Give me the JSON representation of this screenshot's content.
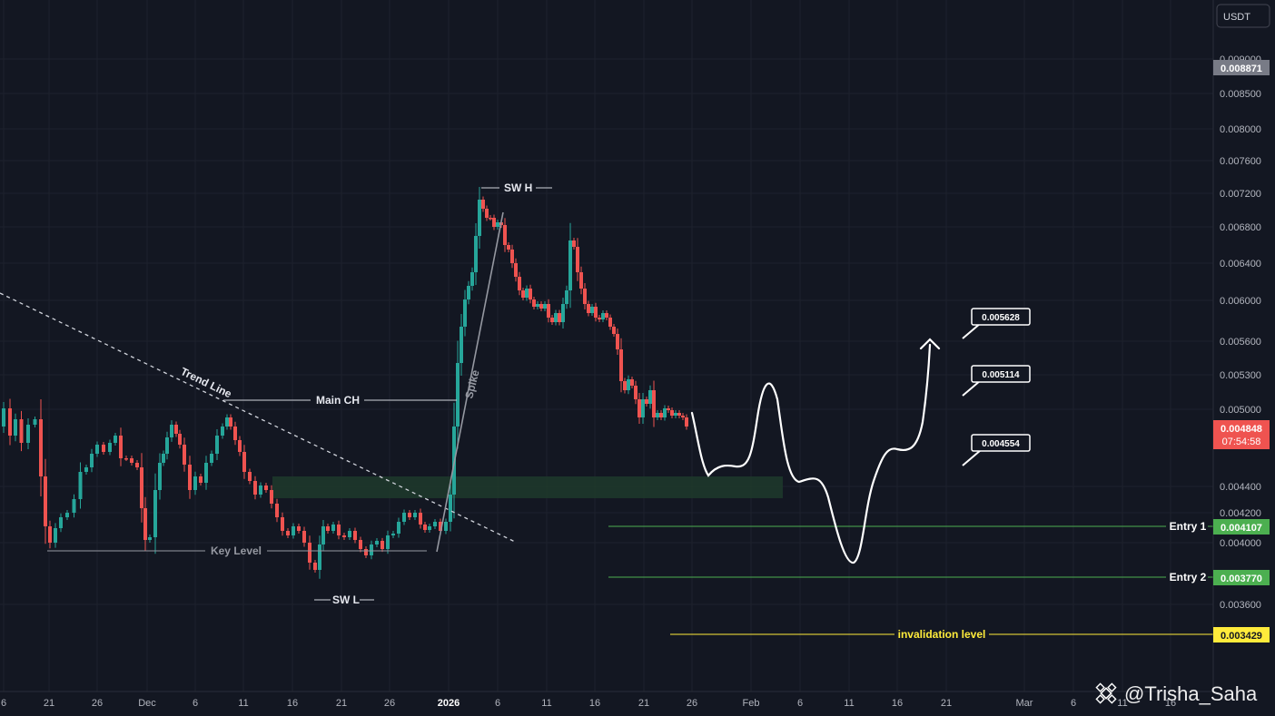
{
  "currency": {
    "label": "USDT"
  },
  "watermark": {
    "handle": "@Trisha_Saha"
  },
  "price_scale": {
    "ticks": [
      "0.009000",
      "0.008500",
      "0.008000",
      "0.007600",
      "0.007200",
      "0.006800",
      "0.006400",
      "0.006000",
      "0.005600",
      "0.005300",
      "0.005000",
      "0.004400",
      "0.004200",
      "0.004000",
      "0.003600"
    ],
    "current_price": "0.008871",
    "last_price": "0.004848",
    "countdown": "07:54:58",
    "colors": {
      "bull": "#26a69a",
      "bear": "#ef5350",
      "gray_tag": "#787b86",
      "entry": "#4caf50",
      "invalid": "#ffeb3b"
    }
  },
  "time_scale": {
    "ticks": [
      "6",
      "21",
      "26",
      "Dec",
      "6",
      "11",
      "16",
      "21",
      "26",
      "2026",
      "6",
      "11",
      "16",
      "21",
      "26",
      "Feb",
      "6",
      "11",
      "16",
      "21",
      "Mar",
      "6",
      "11",
      "16"
    ]
  },
  "annotations": {
    "trend_line": "Trend Line",
    "main_ch": "Main CH",
    "key_level": "Key Level",
    "spike": "Spike",
    "sw_h": "SW H",
    "sw_l": "SW L"
  },
  "levels": {
    "entry1": {
      "label": "Entry 1",
      "price": "0.004107"
    },
    "entry2": {
      "label": "Entry 2",
      "price": "0.003770"
    },
    "invalidation": {
      "label": "invalidation level",
      "price": "0.003429"
    }
  },
  "targets": [
    "0.005628",
    "0.005114",
    "0.004554"
  ],
  "chart_data": {
    "type": "candlestick",
    "y_scale": "log-like (TradingView price axis)",
    "grid": true,
    "candles_ohlc_approx": [
      {
        "date": "Nov 21",
        "o": 0.0043,
        "h": 0.00445,
        "l": 0.00398,
        "c": 0.00405
      },
      {
        "date": "Nov 26",
        "o": 0.0044,
        "h": 0.00475,
        "l": 0.00435,
        "c": 0.00465
      },
      {
        "date": "Dec 1",
        "o": 0.00462,
        "h": 0.0047,
        "l": 0.004,
        "c": 0.00405
      },
      {
        "date": "Dec 6",
        "o": 0.00445,
        "h": 0.0048,
        "l": 0.00435,
        "c": 0.0047
      },
      {
        "date": "Dec 9",
        "o": 0.0047,
        "h": 0.0051,
        "l": 0.0044,
        "c": 0.00465
      },
      {
        "date": "Dec 16",
        "o": 0.0042,
        "h": 0.00425,
        "l": 0.00385,
        "c": 0.00392
      },
      {
        "date": "Dec 19",
        "o": 0.0039,
        "h": 0.00395,
        "l": 0.0036,
        "c": 0.0037
      },
      {
        "date": "Dec 26",
        "o": 0.00395,
        "h": 0.0041,
        "l": 0.0038,
        "c": 0.004
      },
      {
        "date": "Jan 1",
        "o": 0.004,
        "h": 0.0043,
        "l": 0.00395,
        "c": 0.0042
      },
      {
        "date": "Jan 4",
        "o": 0.006,
        "h": 0.0073,
        "l": 0.0058,
        "c": 0.00715
      },
      {
        "date": "Jan 13",
        "o": 0.0061,
        "h": 0.0069,
        "l": 0.006,
        "c": 0.0068
      },
      {
        "date": "Jan 24",
        "o": 0.00495,
        "h": 0.005,
        "l": 0.0047,
        "c": 0.004848
      }
    ],
    "support_zone": [
      0.00433,
      0.0045
    ],
    "horizontal_levels": [
      {
        "name": "Key Level",
        "price": 0.00393
      },
      {
        "name": "Main CH",
        "price": 0.0051
      },
      {
        "name": "Entry 1",
        "price": 0.004107
      },
      {
        "name": "Entry 2",
        "price": 0.00377
      },
      {
        "name": "invalidation level",
        "price": 0.003429
      }
    ],
    "projected_path_price": [
      0.0049,
      0.00448,
      0.00458,
      0.0046,
      0.0053,
      0.00446,
      0.00446,
      0.0038,
      0.0039,
      0.0044,
      0.0049,
      0.00495,
      0.0056
    ]
  }
}
